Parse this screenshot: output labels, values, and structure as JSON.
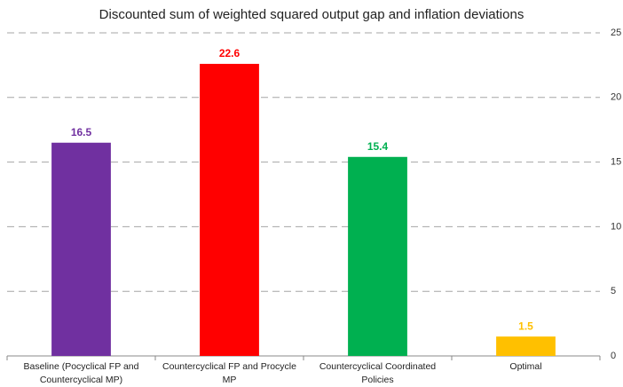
{
  "chart_data": {
    "type": "bar",
    "title": "Discounted sum of weighted squared output gap and inflation deviations",
    "categories": [
      "Baseline (Pocyclical FP and Countercyclical MP)",
      "Countercyclical FP and Procycle MP",
      "Countercyclical Coordinated Policies",
      "Optimal"
    ],
    "values": [
      16.5,
      22.6,
      15.4,
      1.5
    ],
    "colors": [
      "#7030a0",
      "#ff0000",
      "#00b050",
      "#ffc000"
    ],
    "ylim": [
      0,
      25
    ],
    "yticks": [
      0,
      5,
      10,
      15,
      20,
      25
    ],
    "y_axis_side": "right",
    "grid": true
  }
}
